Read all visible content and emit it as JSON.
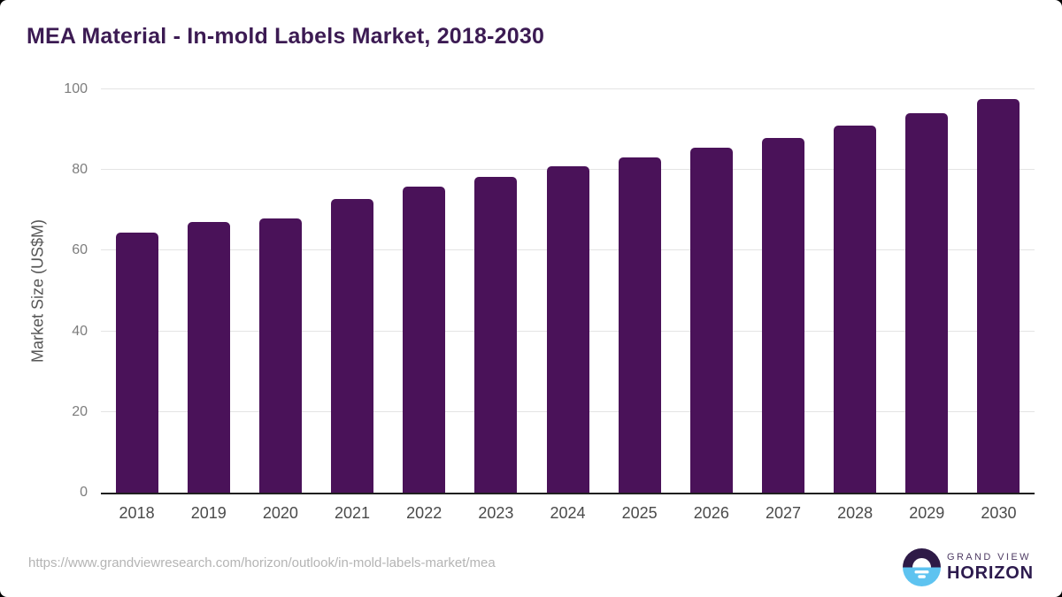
{
  "page": {
    "title": "MEA Material - In-mold Labels Market, 2018-2030",
    "source_url": "https://www.grandviewresearch.com/horizon/outlook/in-mold-labels-market/mea"
  },
  "logo": {
    "line1": "GRAND VIEW",
    "line2": "HORIZON",
    "mark_top_color": "#2e1a47",
    "mark_bottom_color": "#5ec3f0"
  },
  "chart_data": {
    "type": "bar",
    "title": "MEA Material - In-mold Labels Market, 2018-2030",
    "xlabel": "",
    "ylabel": "Market Size (US$M)",
    "categories": [
      "2018",
      "2019",
      "2020",
      "2021",
      "2022",
      "2023",
      "2024",
      "2025",
      "2026",
      "2027",
      "2028",
      "2029",
      "2030"
    ],
    "values": [
      64.4,
      67.0,
      68.0,
      72.9,
      75.9,
      78.4,
      81.0,
      83.2,
      85.6,
      88.0,
      91.0,
      94.0,
      97.5
    ],
    "ylim": [
      0,
      100
    ],
    "yticks": [
      0,
      20,
      40,
      60,
      80,
      100
    ],
    "grid": true,
    "legend": false,
    "bar_color": "#4a1259",
    "title_color": "#3c1b53"
  }
}
